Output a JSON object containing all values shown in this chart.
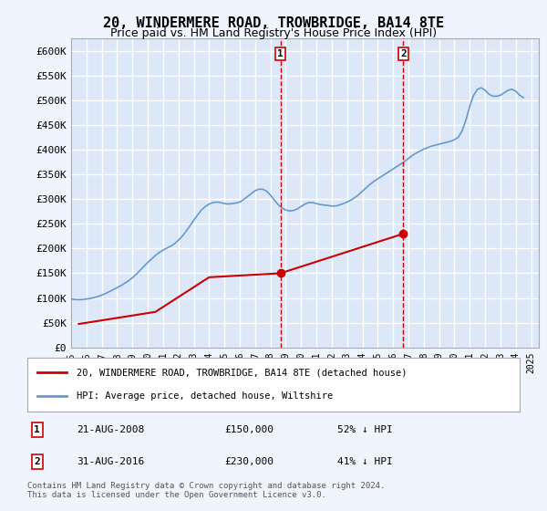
{
  "title": "20, WINDERMERE ROAD, TROWBRIDGE, BA14 8TE",
  "subtitle": "Price paid vs. HM Land Registry's House Price Index (HPI)",
  "title_fontsize": 11,
  "subtitle_fontsize": 9,
  "ytick_values": [
    0,
    50000,
    100000,
    150000,
    200000,
    250000,
    300000,
    350000,
    400000,
    450000,
    500000,
    550000,
    600000
  ],
  "ylim": [
    0,
    625000
  ],
  "xlim_start": 1995.0,
  "xlim_end": 2025.5,
  "xtick_years": [
    1995,
    1996,
    1997,
    1998,
    1999,
    2000,
    2001,
    2002,
    2003,
    2004,
    2005,
    2006,
    2007,
    2008,
    2009,
    2010,
    2011,
    2012,
    2013,
    2014,
    2015,
    2016,
    2017,
    2018,
    2019,
    2020,
    2021,
    2022,
    2023,
    2024,
    2025
  ],
  "background_color": "#f0f4ff",
  "plot_bg_color": "#dce8f8",
  "grid_color": "#ffffff",
  "hpi_color": "#6699cc",
  "price_color": "#cc0000",
  "marker_color": "#cc0000",
  "vline_color": "#cc0000",
  "sale1_x": 2008.646,
  "sale1_y": 150000,
  "sale1_label": "1",
  "sale1_date": "21-AUG-2008",
  "sale1_price": "£150,000",
  "sale1_hpi": "52% ↓ HPI",
  "sale2_x": 2016.671,
  "sale2_y": 230000,
  "sale2_label": "2",
  "sale2_date": "31-AUG-2016",
  "sale2_price": "£230,000",
  "sale2_hpi": "41% ↓ HPI",
  "legend_label1": "20, WINDERMERE ROAD, TROWBRIDGE, BA14 8TE (detached house)",
  "legend_label2": "HPI: Average price, detached house, Wiltshire",
  "footer": "Contains HM Land Registry data © Crown copyright and database right 2024.\nThis data is licensed under the Open Government Licence v3.0.",
  "hpi_x": [
    1995.0,
    1995.25,
    1995.5,
    1995.75,
    1996.0,
    1996.25,
    1996.5,
    1996.75,
    1997.0,
    1997.25,
    1997.5,
    1997.75,
    1998.0,
    1998.25,
    1998.5,
    1998.75,
    1999.0,
    1999.25,
    1999.5,
    1999.75,
    2000.0,
    2000.25,
    2000.5,
    2000.75,
    2001.0,
    2001.25,
    2001.5,
    2001.75,
    2002.0,
    2002.25,
    2002.5,
    2002.75,
    2003.0,
    2003.25,
    2003.5,
    2003.75,
    2004.0,
    2004.25,
    2004.5,
    2004.75,
    2005.0,
    2005.25,
    2005.5,
    2005.75,
    2006.0,
    2006.25,
    2006.5,
    2006.75,
    2007.0,
    2007.25,
    2007.5,
    2007.75,
    2008.0,
    2008.25,
    2008.5,
    2008.75,
    2009.0,
    2009.25,
    2009.5,
    2009.75,
    2010.0,
    2010.25,
    2010.5,
    2010.75,
    2011.0,
    2011.25,
    2011.5,
    2011.75,
    2012.0,
    2012.25,
    2012.5,
    2012.75,
    2013.0,
    2013.25,
    2013.5,
    2013.75,
    2014.0,
    2014.25,
    2014.5,
    2014.75,
    2015.0,
    2015.25,
    2015.5,
    2015.75,
    2016.0,
    2016.25,
    2016.5,
    2016.75,
    2017.0,
    2017.25,
    2017.5,
    2017.75,
    2018.0,
    2018.25,
    2018.5,
    2018.75,
    2019.0,
    2019.25,
    2019.5,
    2019.75,
    2020.0,
    2020.25,
    2020.5,
    2020.75,
    2021.0,
    2021.25,
    2021.5,
    2021.75,
    2022.0,
    2022.25,
    2022.5,
    2022.75,
    2023.0,
    2023.25,
    2023.5,
    2023.75,
    2024.0,
    2024.25,
    2024.5
  ],
  "hpi_y": [
    98000,
    97000,
    96500,
    97000,
    98000,
    99000,
    101000,
    103000,
    106000,
    109000,
    113000,
    117000,
    121000,
    125000,
    130000,
    135000,
    141000,
    148000,
    156000,
    164000,
    172000,
    179000,
    186000,
    192000,
    197000,
    201000,
    205000,
    210000,
    217000,
    225000,
    235000,
    246000,
    257000,
    268000,
    278000,
    285000,
    290000,
    293000,
    294000,
    293000,
    291000,
    290000,
    291000,
    292000,
    294000,
    299000,
    305000,
    311000,
    317000,
    320000,
    320000,
    316000,
    308000,
    298000,
    289000,
    282000,
    278000,
    276000,
    277000,
    280000,
    285000,
    290000,
    293000,
    293000,
    291000,
    289000,
    288000,
    287000,
    286000,
    286000,
    288000,
    291000,
    294000,
    298000,
    303000,
    309000,
    316000,
    323000,
    330000,
    336000,
    341000,
    346000,
    351000,
    356000,
    361000,
    366000,
    371000,
    376000,
    382000,
    388000,
    393000,
    397000,
    401000,
    404000,
    407000,
    409000,
    411000,
    413000,
    415000,
    417000,
    420000,
    425000,
    438000,
    460000,
    488000,
    510000,
    522000,
    525000,
    520000,
    512000,
    508000,
    508000,
    510000,
    515000,
    520000,
    522000,
    518000,
    510000,
    505000
  ],
  "price_x": [
    1995.5,
    2000.5,
    2004.0,
    2008.646,
    2016.671
  ],
  "price_y": [
    47500,
    72000,
    142000,
    150000,
    230000
  ]
}
